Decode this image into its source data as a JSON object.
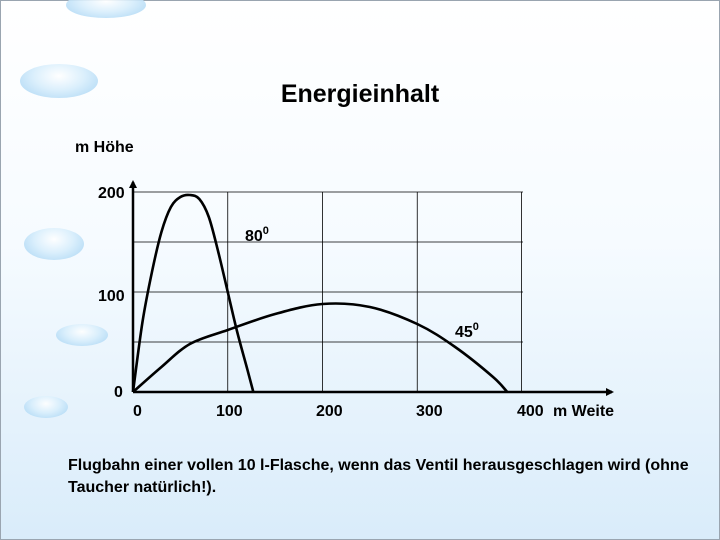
{
  "chart_data": {
    "type": "line",
    "title": "Energieinhalt",
    "ylabel": "m Höhe",
    "xlabel": "m Weite",
    "x_ticks": [
      "0",
      "100",
      "200",
      "300",
      "400"
    ],
    "y_ticks": [
      "0",
      "100",
      "200"
    ],
    "xlim": [
      0,
      470
    ],
    "ylim": [
      0,
      200
    ],
    "grid": true,
    "series": [
      {
        "name": "80",
        "points": [
          [
            0,
            0
          ],
          [
            10,
            70
          ],
          [
            20,
            120
          ],
          [
            30,
            160
          ],
          [
            40,
            185
          ],
          [
            50,
            195
          ],
          [
            60,
            197
          ],
          [
            70,
            193
          ],
          [
            80,
            175
          ],
          [
            90,
            140
          ],
          [
            100,
            100
          ],
          [
            110,
            60
          ],
          [
            120,
            25
          ],
          [
            127,
            0
          ]
        ]
      },
      {
        "name": "45",
        "points": [
          [
            0,
            0
          ],
          [
            30,
            25
          ],
          [
            60,
            48
          ],
          [
            100,
            62
          ],
          [
            150,
            78
          ],
          [
            200,
            88
          ],
          [
            250,
            85
          ],
          [
            300,
            68
          ],
          [
            340,
            45
          ],
          [
            380,
            15
          ],
          [
            395,
            0
          ]
        ]
      }
    ],
    "annotations": [
      {
        "text": "80",
        "superscript": "0"
      },
      {
        "text": "45",
        "superscript": "0"
      }
    ]
  },
  "caption": "Flugbahn einer vollen 10 l-Flasche, wenn das Ventil herausgeschlagen wird (ohne Taucher natürlich!)."
}
